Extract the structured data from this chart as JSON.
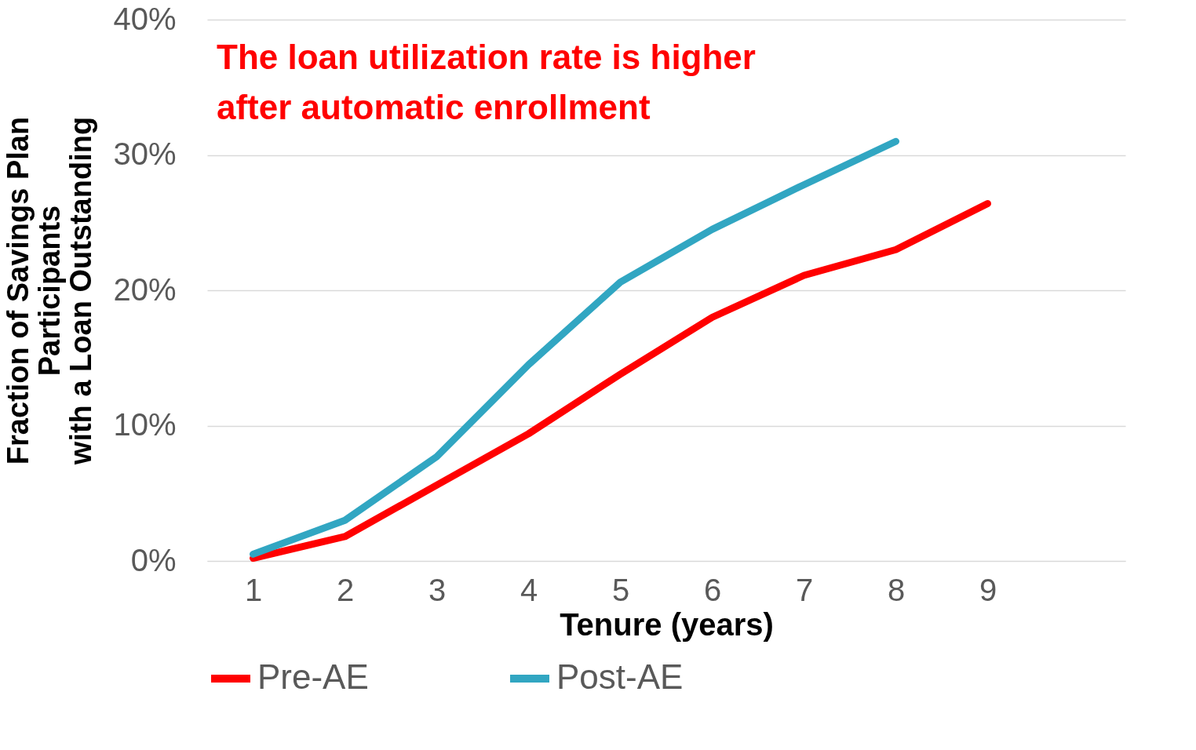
{
  "chart_data": {
    "type": "line",
    "xlabel": "Tenure (years)",
    "ylabel": "Fraction of Savings Plan\nParticipants\nwith a Loan Outstanding",
    "categories": [
      "1",
      "2",
      "3",
      "4",
      "5",
      "6",
      "7",
      "8",
      "9",
      null
    ],
    "series": [
      {
        "name": "Pre-AE",
        "color": "#ff0000",
        "values": [
          0.2,
          1.8,
          5.6,
          9.4,
          13.8,
          18.0,
          21.1,
          23.0,
          26.4,
          null
        ]
      },
      {
        "name": "Post-AE",
        "color": "#31a6c2",
        "values": [
          0.5,
          3.0,
          7.7,
          14.5,
          20.6,
          24.5,
          27.8,
          31.0,
          null,
          null
        ]
      }
    ],
    "ylim": [
      0,
      40
    ],
    "yticks": [
      {
        "value": 0,
        "label": "0%"
      },
      {
        "value": 10,
        "label": "10%"
      },
      {
        "value": 20,
        "label": "20%"
      },
      {
        "value": 30,
        "label": "30%"
      },
      {
        "value": 40,
        "label": "40%"
      }
    ],
    "annotations": [
      "The loan utilization rate is higher\nafter automatic enrollment"
    ],
    "grid": "y",
    "legend": "bottom",
    "marker": "none",
    "line_style": "solid"
  }
}
